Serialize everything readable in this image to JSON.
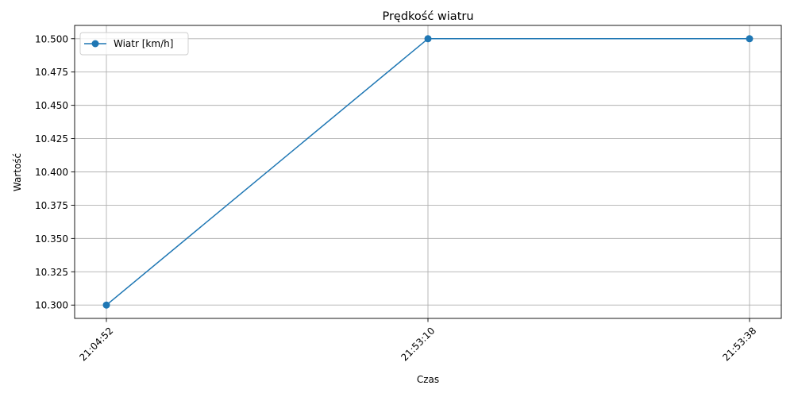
{
  "chart_data": {
    "type": "line",
    "title": "Prędkość wiatru",
    "xlabel": "Czas",
    "ylabel": "Wartość",
    "categories": [
      "21:04:52",
      "21:53:10",
      "21:53:38"
    ],
    "series": [
      {
        "name": "Wiatr [km/h]",
        "values": [
          10.3,
          10.5,
          10.5
        ],
        "color": "#1f77b4",
        "marker": "circle"
      }
    ],
    "ylim": [
      10.29,
      10.51
    ],
    "yticks": [
      "10.300",
      "10.325",
      "10.350",
      "10.375",
      "10.400",
      "10.425",
      "10.450",
      "10.475",
      "10.500"
    ],
    "x_tick_rotation": "45 degrees",
    "grid": true,
    "legend_position": "upper-left"
  }
}
